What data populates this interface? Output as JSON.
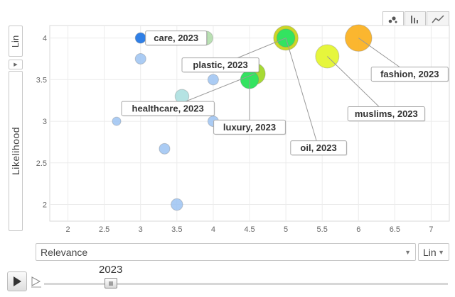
{
  "y_scale_button": {
    "label": "Lin"
  },
  "x_scale_button": {
    "label": "Lin"
  },
  "x_axis_select": {
    "value": "Relevance"
  },
  "player": {
    "year_label": "2023"
  },
  "chart_tabs": [
    {
      "name": "bubble-chart-icon",
      "active": true
    },
    {
      "name": "bar-chart-icon",
      "active": false
    },
    {
      "name": "line-chart-icon",
      "active": false
    }
  ],
  "chart_data": {
    "type": "scatter",
    "title": "",
    "xlabel": "Relevance",
    "ylabel": "Likelihood",
    "xlim": [
      1.75,
      7.25
    ],
    "ylim": [
      1.8,
      4.15
    ],
    "grid": true,
    "x_ticks": [
      "2",
      "2.5",
      "3",
      "3.5",
      "4",
      "4.5",
      "5",
      "5.5",
      "6",
      "6.5",
      "7"
    ],
    "y_ticks": [
      "2",
      "2.5",
      "3",
      "3.5",
      "4"
    ],
    "points": [
      {
        "x": 3.0,
        "y": 4.0,
        "size": 1.0,
        "color": "#2f7fe6",
        "alpha": 1.0
      },
      {
        "x": 3.25,
        "y": 4.0,
        "size": 1.0,
        "color": "#8fbcf0",
        "alpha": 0.85
      },
      {
        "x": 3.33,
        "y": 4.0,
        "size": 1.0,
        "color": "#6fa6ee",
        "alpha": 0.85
      },
      {
        "x": 3.5,
        "y": 4.0,
        "size": 1.0,
        "color": "#6fa6ee",
        "alpha": 0.85
      },
      {
        "x": 3.9,
        "y": 4.0,
        "size": 1.3,
        "color": "#a8d8a0",
        "alpha": 0.8
      },
      {
        "x": 3.0,
        "y": 3.75,
        "size": 1.0,
        "color": "#9cc3f2",
        "alpha": 0.85
      },
      {
        "x": 4.0,
        "y": 3.5,
        "size": 1.0,
        "color": "#9cc3f2",
        "alpha": 0.85
      },
      {
        "x": 3.57,
        "y": 3.3,
        "size": 1.3,
        "color": "#a8dede",
        "alpha": 0.85
      },
      {
        "x": 2.67,
        "y": 3.0,
        "size": 0.8,
        "color": "#9cc3f2",
        "alpha": 0.85
      },
      {
        "x": 4.0,
        "y": 3.0,
        "size": 1.0,
        "color": "#9cc3f2",
        "alpha": 0.85
      },
      {
        "x": 3.33,
        "y": 2.67,
        "size": 1.0,
        "color": "#9cc3f2",
        "alpha": 0.85
      },
      {
        "x": 3.5,
        "y": 2.0,
        "size": 1.1,
        "color": "#9cc3f2",
        "alpha": 0.85
      },
      {
        "x": 4.57,
        "y": 3.57,
        "size": 2.0,
        "color": "#9cd61e",
        "alpha": 0.9
      },
      {
        "x": 5.0,
        "y": 4.0,
        "size": 2.3,
        "color": "#c9d51a",
        "alpha": 0.95
      },
      {
        "x": 5.57,
        "y": 3.78,
        "size": 2.2,
        "color": "#e5f532",
        "alpha": 0.95
      },
      {
        "x": 6.0,
        "y": 4.0,
        "size": 2.5,
        "color": "#fbb224",
        "alpha": 0.95
      },
      {
        "x": 4.5,
        "y": 3.5,
        "size": 1.7,
        "color": "#33e360",
        "alpha": 1.0
      },
      {
        "x": 5.0,
        "y": 4.0,
        "size": 1.7,
        "color": "#33e360",
        "alpha": 1.0
      }
    ],
    "labels": [
      {
        "text": "care, 2023",
        "x": 3.9,
        "y": 4.0
      },
      {
        "text": "plastic, 2023",
        "x": 5.0,
        "y": 4.0
      },
      {
        "text": "healthcare, 2023",
        "x": 4.57,
        "y": 3.57
      },
      {
        "text": "luxury, 2023",
        "x": 4.5,
        "y": 3.5
      },
      {
        "text": "oil, 2023",
        "x": 5.0,
        "y": 4.0
      },
      {
        "text": "muslims, 2023",
        "x": 5.57,
        "y": 3.78
      },
      {
        "text": "fashion, 2023",
        "x": 6.0,
        "y": 4.0
      }
    ]
  }
}
